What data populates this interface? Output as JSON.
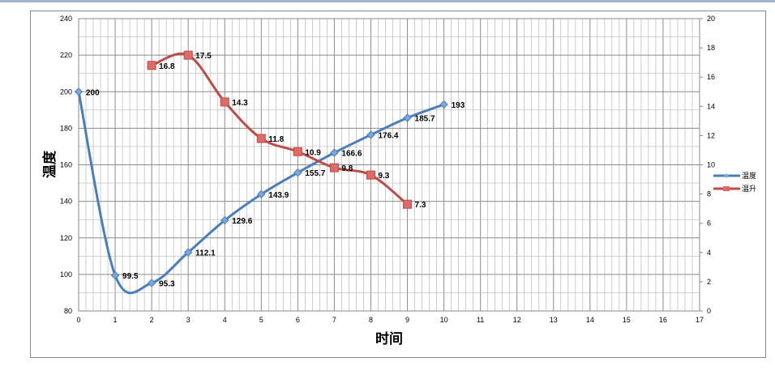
{
  "chart_data": {
    "type": "line",
    "title": "",
    "xlabel": "时间",
    "ylabel": "温度",
    "y2label": "",
    "xlim": [
      0,
      17
    ],
    "ylim": [
      80,
      240
    ],
    "y2lim": [
      0,
      20
    ],
    "xticks": [
      "0",
      "1",
      "2",
      "3",
      "4",
      "5",
      "6",
      "7",
      "8",
      "9",
      "10",
      "11",
      "12",
      "13",
      "14",
      "15",
      "16",
      "17"
    ],
    "yticks": [
      "80",
      "100",
      "120",
      "140",
      "160",
      "180",
      "200",
      "220",
      "240"
    ],
    "y2ticks": [
      "0",
      "2",
      "4",
      "6",
      "8",
      "10",
      "12",
      "14",
      "16",
      "18",
      "20"
    ],
    "grid": true,
    "legend_position": "right",
    "smooth": true,
    "series": [
      {
        "name": "温度",
        "axis": "left",
        "color": "#4a7ebb",
        "marker": "diamond",
        "x": [
          0,
          1,
          2,
          3,
          4,
          5,
          6,
          7,
          8,
          9,
          10
        ],
        "values": [
          200,
          99.5,
          95.3,
          112.1,
          129.6,
          143.9,
          155.7,
          166.6,
          176.4,
          185.7,
          193
        ],
        "labels": [
          "200",
          "99.5",
          "95.3",
          "112.1",
          "129.6",
          "143.9",
          "155.7",
          "166.6",
          "176.4",
          "185.7",
          "193"
        ]
      },
      {
        "name": "温升",
        "axis": "right",
        "color": "#be4b48",
        "marker": "square",
        "x": [
          2,
          3,
          4,
          5,
          6,
          7,
          8,
          9
        ],
        "values": [
          16.8,
          17.5,
          14.3,
          11.8,
          10.9,
          9.8,
          9.3,
          7.3
        ],
        "labels": [
          "16.8",
          "17.5",
          "14.3",
          "11.8",
          "10.9",
          "9.8",
          "9.3",
          "7.3"
        ]
      }
    ]
  }
}
